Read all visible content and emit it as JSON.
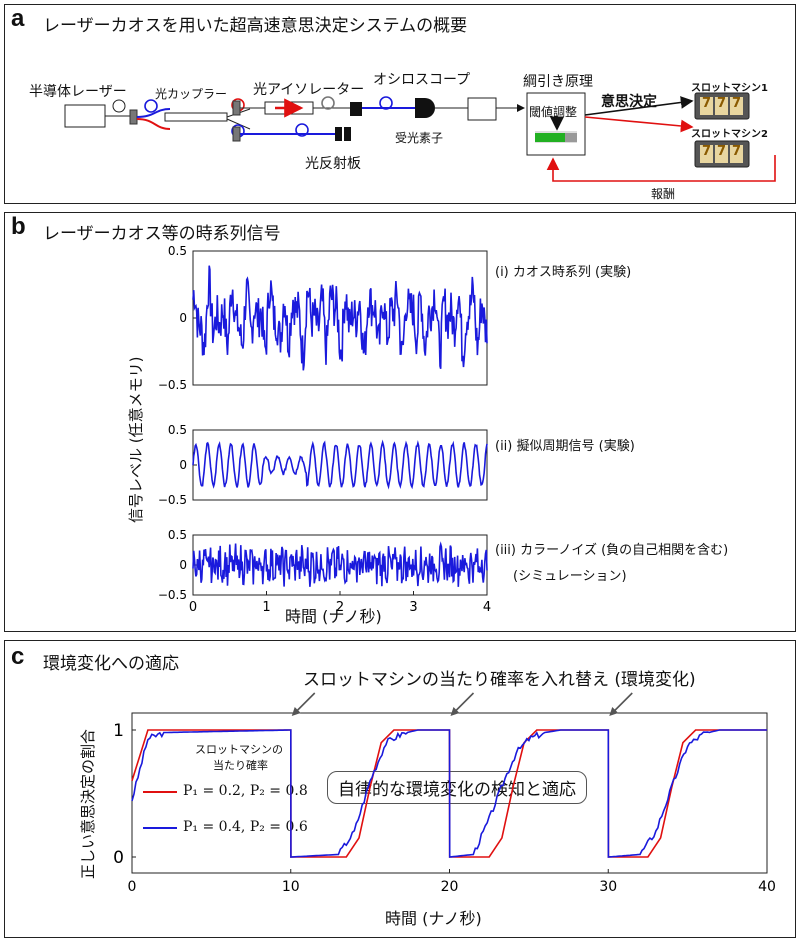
{
  "panel_a": {
    "letter": "a",
    "title": "レーザーカオスを用いた超高速意思決定システムの概要",
    "labels": {
      "laser": "半導体レーザー",
      "coupler": "光カップラー",
      "isolator": "光アイソレーター",
      "oscilloscope": "オシロスコープ",
      "tug_principle": "綱引き原理",
      "threshold": "閾値調整",
      "decision": "意思決定",
      "slot1": "スロットマシン1",
      "slot2": "スロットマシン2",
      "detector": "受光素子",
      "reflector": "光反射板",
      "reward": "報酬",
      "reel": "7"
    }
  },
  "panel_b": {
    "letter": "b",
    "title": "レーザーカオス等の時系列信号",
    "ylabel": "信号レベル (任意メモリ)",
    "xlabel": "時間 (ナノ秒)",
    "subplots": [
      {
        "label": "(i) カオス時系列 (実験)",
        "yticks": [
          "0.5",
          "0",
          "−0.5"
        ]
      },
      {
        "label": "(ii) 擬似周期信号 (実験)",
        "yticks": [
          "0.5",
          "0",
          "−0.5"
        ]
      },
      {
        "label": "(iii) カラーノイズ (負の自己相関を含む)",
        "label2": "(シミュレーション)",
        "yticks": [
          "0.5",
          "0",
          "−0.5"
        ]
      }
    ],
    "xticks": [
      "0",
      "1",
      "2",
      "3",
      "4"
    ],
    "line_color": "#1a1adc"
  },
  "panel_c": {
    "letter": "c",
    "title": "環境変化への適応",
    "annotation": "スロットマシンの当たり確率を入れ替え (環境変化)",
    "callout": "自律的な環境変化の検知と適応",
    "ylabel": "正しい意思決定の割合",
    "xlabel": "時間 (ナノ秒)",
    "xticks": [
      "0",
      "10",
      "20",
      "30",
      "40"
    ],
    "yticks": [
      "1",
      "0"
    ],
    "legend_title_1": "スロットマシンの",
    "legend_title_2": "当たり確率",
    "legend": [
      {
        "text": "P₁ = 0.2, P₂ = 0.8",
        "color": "#e01010"
      },
      {
        "text": "P₁ = 0.4, P₂ = 0.6",
        "color": "#1a1adc"
      }
    ]
  },
  "chart_data": [
    {
      "type": "line",
      "title": "レーザーカオス等の時系列信号",
      "xlabel": "時間 (ナノ秒)",
      "ylabel": "信号レベル (任意メモリ)",
      "xlim": [
        0,
        4
      ],
      "ylim": [
        -0.5,
        0.5
      ],
      "series": [
        {
          "name": "(i) カオス時系列 (実験)"
        },
        {
          "name": "(ii) 擬似周期信号 (実験)"
        },
        {
          "name": "(iii) カラーノイズ (負の自己相関を含む)"
        }
      ]
    },
    {
      "type": "line",
      "title": "環境変化への適応",
      "xlabel": "時間 (ナノ秒)",
      "ylabel": "正しい意思決定の割合",
      "xlim": [
        0,
        40
      ],
      "ylim": [
        0,
        1
      ],
      "switch_times": [
        10,
        20,
        30
      ],
      "series": [
        {
          "name": "P₁ = 0.2, P₂ = 0.8",
          "x": [
            0,
            1,
            10,
            10.01,
            13.5,
            14.3,
            15,
            15.7,
            16.5,
            20,
            20.01,
            22.5,
            23.3,
            24,
            24.7,
            25.5,
            30,
            30.01,
            32.5,
            33.3,
            34,
            34.7,
            35.5,
            40
          ],
          "y": [
            0.6,
            1,
            1,
            0,
            0,
            0.15,
            0.55,
            0.9,
            1,
            1,
            0,
            0,
            0.15,
            0.55,
            0.9,
            1,
            1,
            0,
            0,
            0.15,
            0.55,
            0.9,
            1,
            1
          ]
        },
        {
          "name": "P₁ = 0.4, P₂ = 0.6",
          "x": [
            0,
            1,
            2,
            10,
            10.01,
            13,
            14,
            15,
            15.5,
            16,
            17,
            18,
            20,
            20.01,
            21.5,
            22.5,
            23.5,
            24.2,
            25,
            26,
            27,
            30,
            30.01,
            32,
            33,
            34,
            34.5,
            35,
            36,
            37,
            40
          ],
          "y": [
            0.45,
            0.93,
            0.98,
            1,
            0,
            0.02,
            0.2,
            0.6,
            0.75,
            0.9,
            0.97,
            1,
            1,
            0,
            0.02,
            0.3,
            0.62,
            0.82,
            0.93,
            0.98,
            1,
            1,
            0,
            0.02,
            0.2,
            0.55,
            0.72,
            0.88,
            0.97,
            1,
            1
          ]
        }
      ]
    }
  ]
}
